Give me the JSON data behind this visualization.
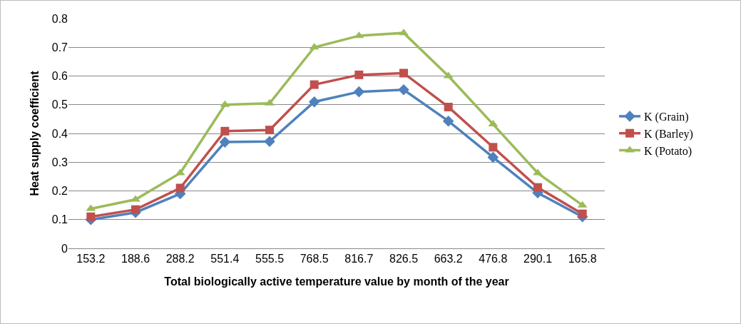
{
  "chart_data": {
    "type": "line",
    "xlabel": "Total biologically active temperature value by month of the year",
    "ylabel": "Heat supply coefficient",
    "categories": [
      "153.2",
      "188.6",
      "288.2",
      "551.4",
      "555.5",
      "768.5",
      "816.7",
      "826.5",
      "663.2",
      "476.8",
      "290.1",
      "165.8"
    ],
    "series": [
      {
        "name": "K (Grain)",
        "color": "#4f81bd",
        "marker": "diamond",
        "values": [
          0.1,
          0.125,
          0.19,
          0.37,
          0.372,
          0.51,
          0.545,
          0.552,
          0.443,
          0.317,
          0.193,
          0.11
        ]
      },
      {
        "name": "K (Barley)",
        "color": "#c0504d",
        "marker": "square",
        "values": [
          0.11,
          0.135,
          0.21,
          0.408,
          0.412,
          0.57,
          0.604,
          0.61,
          0.492,
          0.352,
          0.212,
          0.12
        ]
      },
      {
        "name": "K (Potato)",
        "color": "#9bbb59",
        "marker": "triangle",
        "values": [
          0.138,
          0.17,
          0.262,
          0.5,
          0.505,
          0.7,
          0.74,
          0.75,
          0.6,
          0.432,
          0.262,
          0.15
        ]
      }
    ],
    "ylim": [
      0,
      0.8
    ],
    "yticks": [
      0,
      0.1,
      0.2,
      0.3,
      0.4,
      0.5,
      0.6,
      0.7,
      0.8
    ],
    "grid": "y",
    "legend": "right",
    "line_style": "solid"
  }
}
